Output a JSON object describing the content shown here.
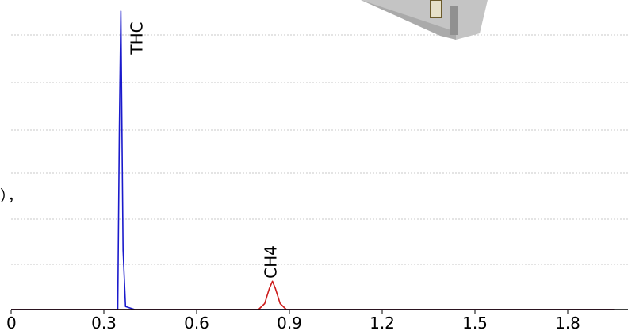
{
  "chart_data": {
    "type": "line",
    "title": "",
    "xlabel": "",
    "ylabel": "",
    "xlim": [
      0,
      1.95
    ],
    "ylim": [
      0,
      100
    ],
    "grid": true,
    "x_ticks": [
      "0",
      "0.3",
      "0.6",
      "0.9",
      "1.2",
      "1.5",
      "1.8"
    ],
    "series": [
      {
        "color": "#1a1acc",
        "x": [
          0,
          0.345,
          0.35,
          0.355,
          0.362,
          0.37,
          0.4,
          1.95
        ],
        "y": [
          0,
          0,
          60,
          100,
          20,
          1,
          0,
          0
        ]
      },
      {
        "color": "#cc1a1a",
        "x": [
          0,
          0.8,
          0.82,
          0.835,
          0.845,
          0.855,
          0.87,
          0.89,
          1.95
        ],
        "y": [
          0,
          0,
          2,
          7,
          9.5,
          7,
          2,
          0,
          0
        ]
      }
    ],
    "annotations": [
      {
        "text": "THC",
        "x": 0.355
      },
      {
        "text": "CH4",
        "x": 0.845
      }
    ]
  },
  "side_text": "），",
  "colors": {
    "blue": "#1a1acc",
    "red": "#cc1a1a",
    "grid": "#c8c8c8",
    "axis": "#000000"
  },
  "icon": "analyzer-device-image"
}
